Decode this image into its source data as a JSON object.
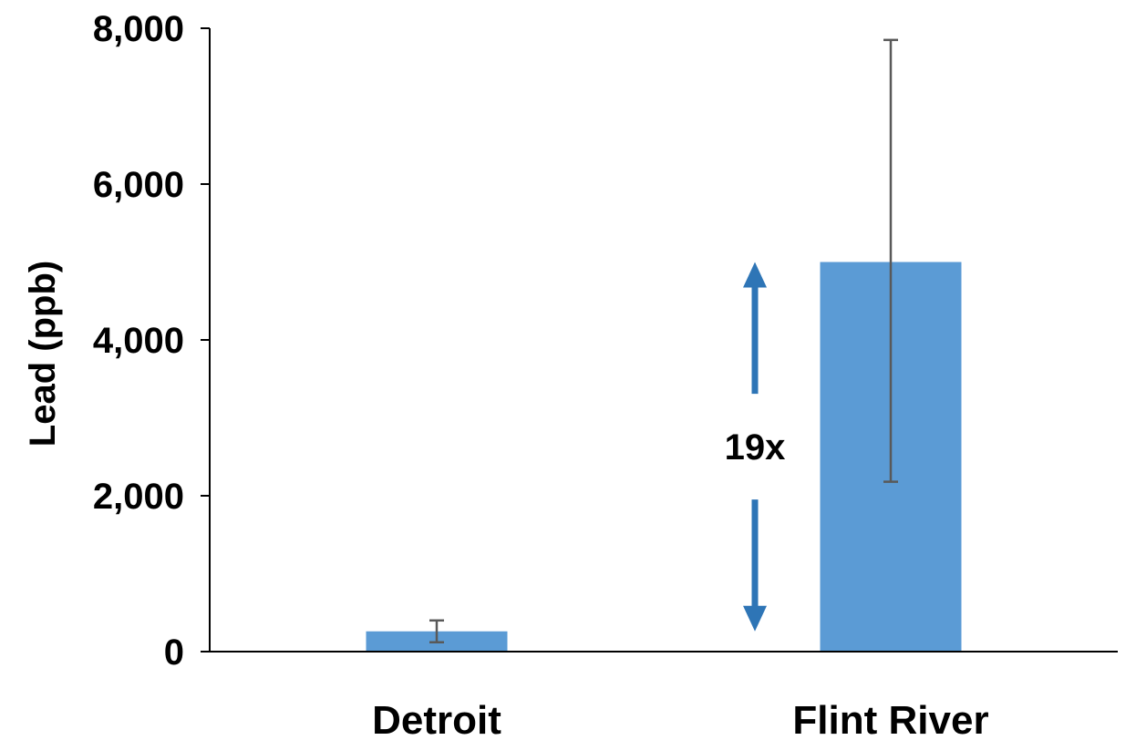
{
  "chart_data": {
    "type": "bar",
    "categories": [
      "Detroit",
      "Flint River"
    ],
    "values": [
      260,
      5000
    ],
    "error_bars": [
      {
        "low": 120,
        "high": 400
      },
      {
        "low": 2180,
        "high": 7850
      }
    ],
    "ylabel": "Lead (ppb)",
    "ylim": [
      0,
      8000
    ],
    "yticks": [
      0,
      2000,
      4000,
      6000,
      8000
    ],
    "ytick_labels": [
      "0",
      "2,000",
      "4,000",
      "6,000",
      "8,000"
    ],
    "grid": false,
    "annotation": {
      "text": "19x",
      "from_value": 260,
      "to_value": 5000
    },
    "colors": {
      "bar": "#5b9bd5",
      "arrow": "#2e75b6",
      "error_bar": "#595959",
      "axis": "#000000"
    }
  }
}
